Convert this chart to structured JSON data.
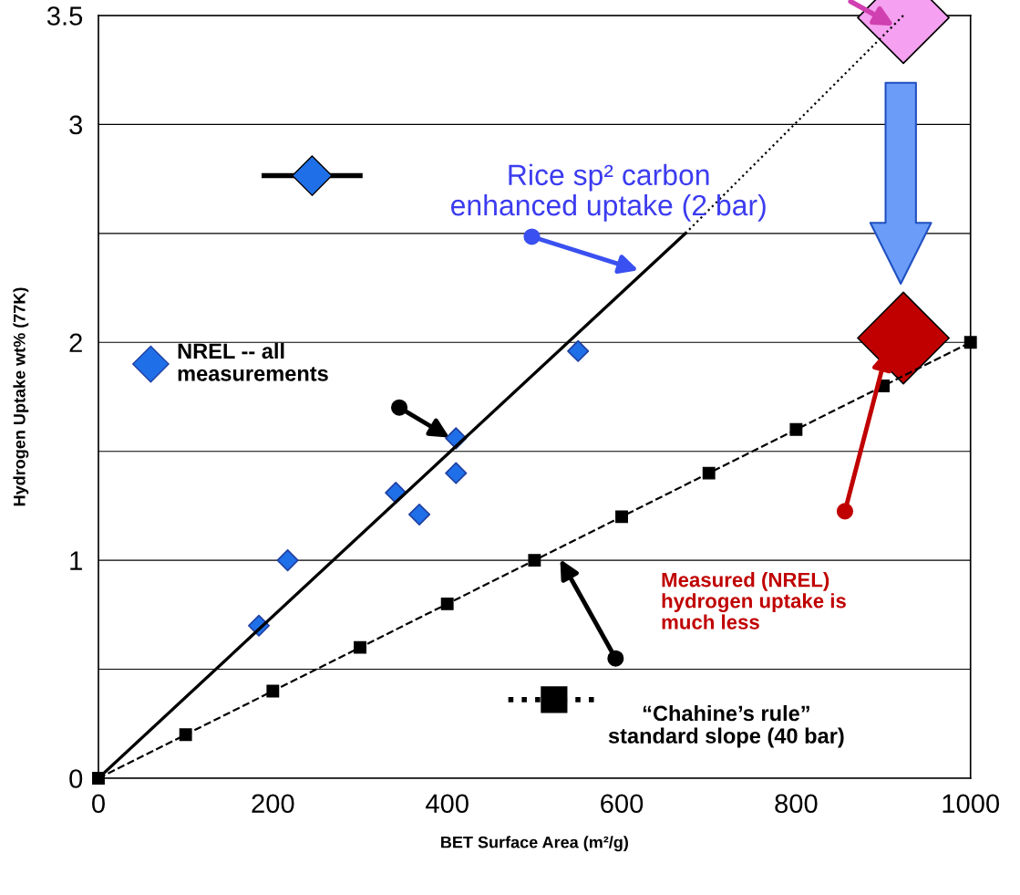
{
  "chart_data": {
    "type": "scatter",
    "xlabel": "BET Surface Area (m²/g)",
    "ylabel": "Hydrogen Uptake wt% (77K)",
    "xlim": [
      0,
      1000
    ],
    "ylim": [
      0,
      3.5
    ],
    "xticks": [
      0,
      200,
      400,
      600,
      800,
      1000
    ],
    "yticks": [
      0,
      {
        "value": 0.5,
        "label": null
      },
      1,
      {
        "value": 1.5,
        "label": null
      },
      2,
      {
        "value": 2.5,
        "label": null
      },
      3,
      3.5
    ],
    "grid": "y",
    "legend": false,
    "series": [
      {
        "type": "line",
        "color": "#000000",
        "line_style": "solid",
        "x": [
          0,
          673
        ],
        "values": [
          0,
          2.5
        ]
      },
      {
        "type": "line",
        "color": "#000000",
        "line_style": "dotted",
        "x": [
          673,
          923
        ],
        "values": [
          2.5,
          3.5
        ]
      },
      {
        "type": "line",
        "color": "#000000",
        "line_style": "dashed",
        "marker": "square",
        "x": [
          0,
          100,
          200,
          300,
          400,
          500,
          600,
          700,
          800,
          900,
          1000
        ],
        "values": [
          0,
          0.2,
          0.4,
          0.6,
          0.8,
          1.0,
          1.2,
          1.4,
          1.6,
          1.8,
          2.0
        ]
      },
      {
        "color": "#1f6fe8",
        "marker": "diamond",
        "x": [
          184,
          217,
          341,
          368,
          410,
          410,
          550
        ],
        "values": [
          0.7,
          1.0,
          1.31,
          1.21,
          1.56,
          1.4,
          1.96
        ]
      },
      {
        "color": "#f5a0f0",
        "marker": "diamond",
        "x": [
          923
        ],
        "values": [
          3.49
        ]
      },
      {
        "color": "#c00000",
        "marker": "diamond",
        "x": [
          923
        ],
        "values": [
          2.02
        ]
      }
    ],
    "annotations": [
      "Rice sp² carbon\nenhanced uptake (2 bar)",
      "NREL -- all\nmeasurements",
      "Measured (NREL)\nhydrogen uptake is\nmuch less",
      "“Chahine’s rule”\nstandard slope (40 bar)"
    ]
  }
}
